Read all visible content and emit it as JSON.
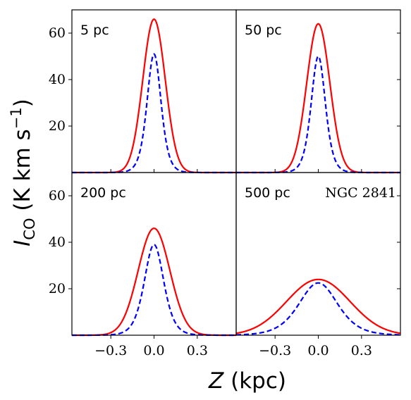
{
  "figure": {
    "ylabel": {
      "italic": "I",
      "sub": "CO",
      "main": " (K km s",
      "sup": "−1",
      "close": ")"
    },
    "xlabel": {
      "italic": "Z",
      "rest": " (kpc)"
    },
    "galaxy": "NGC 2841"
  },
  "chart_data": [
    {
      "type": "line",
      "panel_label": "5 pc",
      "xlim": [
        -0.57,
        0.57
      ],
      "ylim": [
        0,
        70
      ],
      "xticks": [
        -0.3,
        0.0,
        0.3
      ],
      "xtick_labels": [
        "−0.3",
        "0.0",
        "0.3"
      ],
      "yticks": [
        20,
        40,
        60
      ],
      "ytick_labels": [
        "20",
        "40",
        "60"
      ],
      "series": [
        {
          "style": "solid",
          "color": "#ff0000",
          "peak": 66,
          "sigma": 0.078,
          "profile": "gaussian"
        },
        {
          "style": "dashed",
          "color": "#0000ff",
          "peak": 51,
          "sigma": 0.065,
          "profile": "sech2"
        }
      ]
    },
    {
      "type": "line",
      "panel_label": "50 pc",
      "xlim": [
        -0.57,
        0.57
      ],
      "ylim": [
        0,
        70
      ],
      "xticks": [
        -0.3,
        0.0,
        0.3
      ],
      "xtick_labels": [
        "−0.3",
        "0.0",
        "0.3"
      ],
      "yticks": [
        20,
        40,
        60
      ],
      "ytick_labels": [
        "20",
        "40",
        "60"
      ],
      "series": [
        {
          "style": "solid",
          "color": "#ff0000",
          "peak": 64,
          "sigma": 0.08,
          "profile": "gaussian"
        },
        {
          "style": "dashed",
          "color": "#0000ff",
          "peak": 50,
          "sigma": 0.066,
          "profile": "sech2"
        }
      ]
    },
    {
      "type": "line",
      "panel_label": "200 pc",
      "xlim": [
        -0.57,
        0.57
      ],
      "ylim": [
        0,
        70
      ],
      "xticks": [
        -0.3,
        0.0,
        0.3
      ],
      "xtick_labels": [
        "−0.3",
        "0.0",
        "0.3"
      ],
      "yticks": [
        20,
        40,
        60
      ],
      "ytick_labels": [
        "20",
        "40",
        "60"
      ],
      "series": [
        {
          "style": "solid",
          "color": "#ff0000",
          "peak": 46,
          "sigma": 0.11,
          "profile": "gaussian"
        },
        {
          "style": "dashed",
          "color": "#0000ff",
          "peak": 39,
          "sigma": 0.09,
          "profile": "sech2"
        }
      ]
    },
    {
      "type": "line",
      "panel_label": "500 pc",
      "xlim": [
        -0.57,
        0.57
      ],
      "ylim": [
        0,
        70
      ],
      "xticks": [
        -0.3,
        0.0,
        0.3
      ],
      "xtick_labels": [
        "−0.3",
        "0.0",
        "0.3"
      ],
      "yticks": [
        20,
        40,
        60
      ],
      "ytick_labels": [
        "20",
        "40",
        "60"
      ],
      "series": [
        {
          "style": "solid",
          "color": "#ff0000",
          "peak": 24,
          "sigma": 0.22,
          "profile": "gaussian"
        },
        {
          "style": "dashed",
          "color": "#0000ff",
          "peak": 22.5,
          "sigma": 0.18,
          "profile": "sech2"
        }
      ]
    }
  ]
}
